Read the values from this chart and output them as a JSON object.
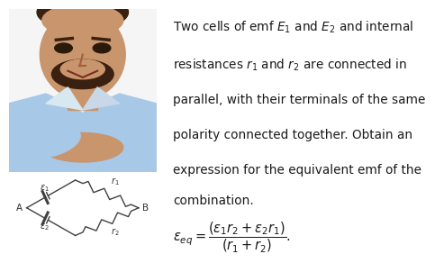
{
  "bg_color": "#ffffff",
  "photo_bg": "#f0f0f0",
  "circuit_bg": "#f5f5f5",
  "divider_color": "#e8c020",
  "text_lines": [
    "Two cells of emf $E_1$ and $E_2$ and internal",
    "resistances $r_1$ and $r_2$ are connected in",
    "parallel, with their terminals of the same",
    "polarity connected together. Obtain an",
    "expression for the equivalent emf of the",
    "combination."
  ],
  "formula": "$\\varepsilon_{eq} = \\dfrac{(\\varepsilon_1 r_2 + \\varepsilon_2 r_1)}{(r_1 + r_2)}.$",
  "text_color": "#1a1a1a",
  "text_fontsize": 9.8,
  "formula_fontsize": 10.5,
  "photo_skin": "#c8956c",
  "photo_hair": "#3a2010",
  "photo_shirt": "#a8c8e8",
  "photo_bg_white": "#f8f8f8"
}
